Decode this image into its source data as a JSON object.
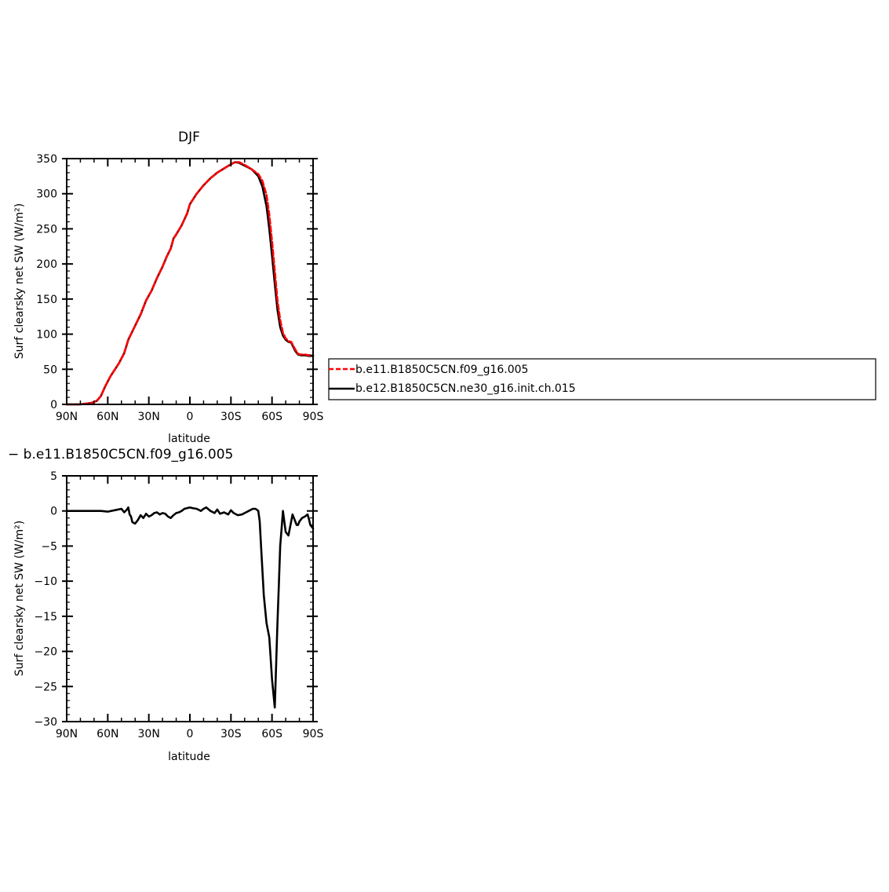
{
  "chart_data": [
    {
      "type": "line",
      "title": "DJF",
      "xlabel": "latitude",
      "ylabel": "Surf clearsky net SW (W/m²)",
      "xlim": [
        90,
        -90
      ],
      "ylim": [
        0,
        350
      ],
      "x_ticks": [
        90,
        60,
        30,
        0,
        -30,
        -60,
        -90
      ],
      "x_tick_labels": [
        "90N",
        "60N",
        "30N",
        "0",
        "30S",
        "60S",
        "90S"
      ],
      "y_ticks": [
        0,
        50,
        100,
        150,
        200,
        250,
        300,
        350
      ],
      "y_tick_labels": [
        "0",
        "50",
        "100",
        "150",
        "200",
        "250",
        "300",
        "350"
      ],
      "legend_position": "right",
      "series": [
        {
          "name": "b.e12.B1850C5CN.ne30_g16.init.ch.015",
          "color": "#000000",
          "dash": "solid",
          "x": [
            90,
            80,
            72,
            68,
            65,
            62,
            58,
            52,
            48,
            45,
            40,
            36,
            32,
            28,
            24,
            20,
            17,
            14,
            12,
            10,
            6,
            2,
            0,
            -5,
            -10,
            -15,
            -20,
            -25,
            -30,
            -33,
            -36,
            -40,
            -45,
            -50,
            -53,
            -56,
            -58,
            -60,
            -62,
            -64,
            -66,
            -68,
            -70,
            -72,
            -74,
            -77,
            -79,
            -81,
            -84,
            -87,
            -90
          ],
          "y": [
            0,
            0,
            2,
            5,
            12,
            25,
            40,
            58,
            73,
            92,
            112,
            128,
            148,
            162,
            180,
            196,
            210,
            222,
            236,
            242,
            255,
            272,
            285,
            300,
            312,
            322,
            330,
            336,
            342,
            345,
            344,
            340,
            335,
            325,
            310,
            282,
            250,
            212,
            172,
            135,
            110,
            98,
            92,
            89,
            88,
            76,
            71,
            70,
            70,
            69,
            69
          ]
        },
        {
          "name": "b.e11.B1850C5CN.f09_g16.005",
          "color": "#ff0000",
          "dash": "dashed",
          "x": [
            90,
            80,
            72,
            68,
            65,
            62,
            58,
            52,
            48,
            45,
            40,
            36,
            32,
            28,
            24,
            20,
            17,
            14,
            12,
            10,
            6,
            2,
            0,
            -5,
            -10,
            -15,
            -20,
            -25,
            -30,
            -33,
            -36,
            -40,
            -45,
            -50,
            -53,
            -56,
            -58,
            -60,
            -62,
            -64,
            -66,
            -68,
            -70,
            -72,
            -74,
            -77,
            -79,
            -81,
            -84,
            -87,
            -90
          ],
          "y": [
            0,
            0,
            2,
            5,
            12,
            25,
            40,
            58,
            73,
            92,
            112,
            128,
            148,
            162,
            180,
            196,
            210,
            222,
            236,
            242,
            255,
            272,
            285,
            300,
            312,
            322,
            330,
            336,
            342,
            345,
            345,
            341,
            335,
            328,
            318,
            298,
            270,
            232,
            190,
            148,
            120,
            102,
            94,
            90,
            89,
            78,
            72,
            71,
            71,
            70,
            70
          ]
        }
      ]
    },
    {
      "type": "line",
      "title": "− b.e11.B1850C5CN.f09_g16.005",
      "xlabel": "latitude",
      "ylabel": "Surf clearsky net SW (W/m²)",
      "xlim": [
        90,
        -90
      ],
      "ylim": [
        -30,
        5
      ],
      "x_ticks": [
        90,
        60,
        30,
        0,
        -30,
        -60,
        -90
      ],
      "x_tick_labels": [
        "90N",
        "60N",
        "30N",
        "0",
        "30S",
        "60S",
        "90S"
      ],
      "y_ticks": [
        -30,
        -25,
        -20,
        -15,
        -10,
        -5,
        0,
        5
      ],
      "y_tick_labels": [
        "−30",
        "−25",
        "−20",
        "−15",
        "−10",
        "−5",
        "0",
        "5"
      ],
      "series": [
        {
          "color": "#000000",
          "dash": "solid",
          "x": [
            90,
            70,
            65,
            60,
            55,
            50,
            48,
            46,
            45,
            44,
            43,
            42,
            40,
            38,
            36,
            34,
            32,
            30,
            28,
            26,
            24,
            22,
            20,
            18,
            16,
            14,
            12,
            10,
            8,
            6,
            4,
            2,
            0,
            -2,
            -5,
            -8,
            -10,
            -12,
            -15,
            -18,
            -20,
            -22,
            -25,
            -28,
            -30,
            -32,
            -35,
            -38,
            -40,
            -43,
            -46,
            -48,
            -50,
            -51,
            -52,
            -54,
            -56,
            -58,
            -60,
            -62,
            -64,
            -65,
            -66,
            -67,
            -68,
            -70,
            -72,
            -74,
            -75,
            -76,
            -77,
            -78,
            -79,
            -80,
            -82,
            -84,
            -86,
            -87,
            -88,
            -90
          ],
          "y": [
            0,
            0,
            0,
            -0.1,
            0.1,
            0.3,
            -0.2,
            0.2,
            0.5,
            -0.5,
            -0.8,
            -1.6,
            -1.8,
            -1.3,
            -0.6,
            -1.0,
            -0.4,
            -0.8,
            -0.6,
            -0.3,
            -0.2,
            -0.5,
            -0.3,
            -0.4,
            -0.8,
            -1.0,
            -0.6,
            -0.3,
            -0.2,
            0.0,
            0.3,
            0.4,
            0.5,
            0.4,
            0.3,
            0.0,
            0.3,
            0.5,
            0.0,
            -0.3,
            0.2,
            -0.4,
            -0.2,
            -0.5,
            0.1,
            -0.3,
            -0.6,
            -0.5,
            -0.3,
            0.0,
            0.3,
            0.3,
            0.0,
            -1.5,
            -5.0,
            -12.0,
            -16.0,
            -18.0,
            -24.0,
            -28.0,
            -16.0,
            -10.5,
            -5.0,
            -2.5,
            0.0,
            -3.0,
            -3.5,
            -1.5,
            -0.5,
            -1.0,
            -1.5,
            -2.0,
            -2.0,
            -1.5,
            -1.0,
            -0.8,
            -0.5,
            -1.2,
            -2.0,
            -2.5
          ]
        }
      ]
    }
  ]
}
